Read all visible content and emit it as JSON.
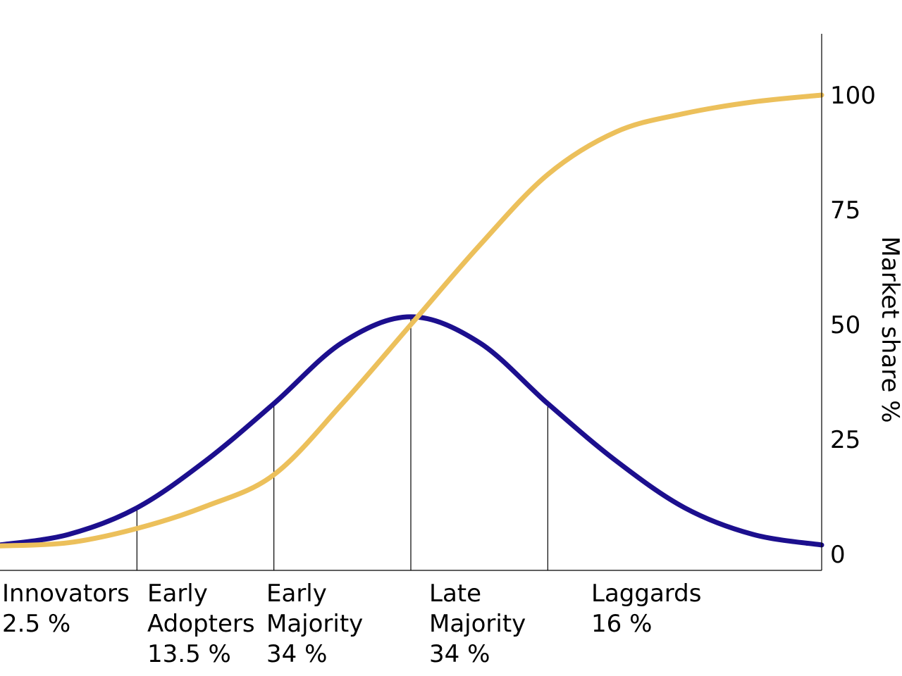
{
  "chart_data": {
    "type": "line",
    "ylabel": "Market share %",
    "ylim": [
      0,
      110
    ],
    "y_ticks": [
      "0",
      "25",
      "50",
      "75",
      "100"
    ],
    "y_axis_side": "right",
    "grid": false,
    "legend": "none",
    "series": [
      {
        "kind": "adoption-curve",
        "color": "#1c0f8e",
        "x": [
          -3,
          -2.5,
          -2,
          -1.5,
          -1,
          -0.5,
          0,
          0.5,
          1,
          1.5,
          2,
          2.5,
          3
        ],
        "values": [
          2.0,
          4.3,
          10.1,
          20.3,
          32.8,
          46.1,
          51.7,
          46.1,
          32.8,
          20.3,
          10.1,
          4.3,
          2.0
        ]
      },
      {
        "kind": "cumulative-curve",
        "color": "#ecc05b",
        "x": [
          -3,
          -2.5,
          -2,
          -1.5,
          -1,
          -0.5,
          0,
          0.5,
          1,
          1.5,
          2,
          2.5,
          3
        ],
        "values": [
          1.8,
          2.5,
          5.6,
          10.4,
          17.3,
          32.8,
          50.0,
          67.2,
          82.7,
          92.0,
          96.0,
          98.5,
          100
        ]
      }
    ],
    "segments": [
      {
        "lines": [
          "Innovators",
          "2.5 %"
        ],
        "share": 2.5
      },
      {
        "lines": [
          "Early",
          "Adopters",
          "13.5 %"
        ],
        "share": 13.5
      },
      {
        "lines": [
          "Early",
          "Majority",
          "34 %"
        ],
        "share": 34
      },
      {
        "lines": [
          "Late",
          "Majority",
          "34 %"
        ],
        "share": 34
      },
      {
        "lines": [
          "Laggards",
          "16 %"
        ],
        "share": 16
      }
    ],
    "segment_bounds_sd": [
      -3,
      -2,
      -1,
      0,
      1,
      3
    ]
  }
}
